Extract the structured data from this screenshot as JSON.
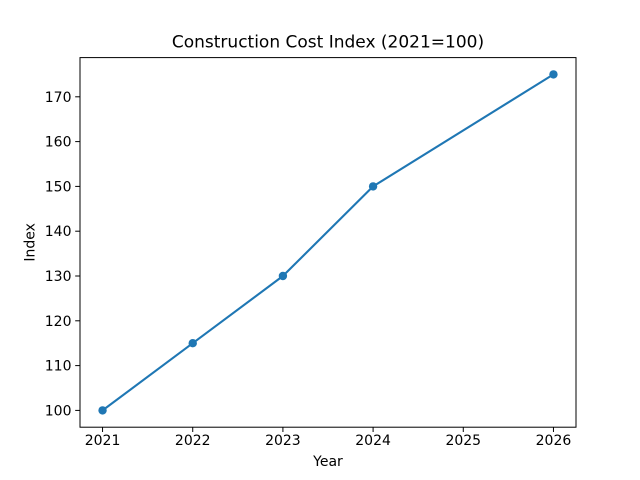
{
  "chart_data": {
    "type": "line",
    "title": "Construction Cost Index (2021=100)",
    "xlabel": "Year",
    "ylabel": "Index",
    "x": [
      2021,
      2022,
      2023,
      2024,
      2026
    ],
    "y": [
      100,
      115,
      130,
      150,
      175
    ],
    "series": [
      {
        "name": "Construction Cost Index",
        "x": [
          2021,
          2022,
          2023,
          2024,
          2026
        ],
        "values": [
          100,
          115,
          130,
          150,
          175
        ]
      }
    ],
    "x_tick_labels": [
      "2021",
      "2022",
      "2023",
      "2024",
      "2025",
      "2026"
    ],
    "x_tick_values": [
      2021,
      2022,
      2023,
      2024,
      2025,
      2026
    ],
    "y_tick_labels": [
      "100",
      "110",
      "120",
      "130",
      "140",
      "150",
      "160",
      "170"
    ],
    "y_tick_values": [
      100,
      110,
      120,
      130,
      140,
      150,
      160,
      170
    ],
    "xlim": [
      2020.75,
      2026.25
    ],
    "ylim": [
      96.25,
      178.75
    ],
    "grid": false,
    "legend": null,
    "colors": {
      "line": "#1f77b4",
      "marker": "#1f77b4",
      "axis": "#000000",
      "text": "#000000",
      "background": "#ffffff"
    }
  }
}
